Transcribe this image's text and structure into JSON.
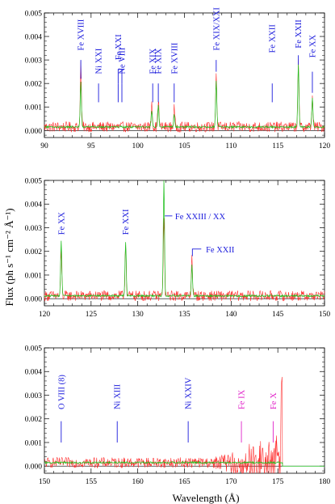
{
  "chart_data": [
    {
      "type": "line",
      "panel": "top",
      "xlim": [
        90,
        120
      ],
      "ylim": [
        -0.0003,
        0.005
      ],
      "xticks": [
        90,
        95,
        100,
        105,
        110,
        115,
        120
      ],
      "xtick_labels": [
        "90",
        "95",
        "100",
        "105",
        "110",
        "115",
        "120"
      ],
      "yticks": [
        0.0,
        0.001,
        0.002,
        0.003,
        0.004,
        0.005
      ],
      "ytick_labels": [
        "0.000",
        "0.001",
        "0.002",
        "0.003",
        "0.004",
        "0.005"
      ],
      "series": [
        {
          "color": "#ff2020",
          "role": "data",
          "baseline": 0.00015,
          "noise": 0.00022,
          "peaks": [
            [
              93.9,
              0.0027
            ],
            [
              101.5,
              0.0011
            ],
            [
              102.2,
              0.0012
            ],
            [
              103.9,
              0.0008
            ],
            [
              108.4,
              0.0023
            ],
            [
              117.2,
              0.0027
            ],
            [
              118.7,
              0.0013
            ]
          ]
        },
        {
          "color": "#22c020",
          "role": "model",
          "baseline": 0.00015,
          "noise": 4e-05,
          "peaks": [
            [
              93.9,
              0.0019
            ],
            [
              101.5,
              0.0007
            ],
            [
              102.2,
              0.0009
            ],
            [
              103.9,
              0.0005
            ],
            [
              108.4,
              0.002
            ],
            [
              117.2,
              0.0027
            ],
            [
              118.7,
              0.0012
            ]
          ]
        }
      ],
      "annotations": [
        {
          "text": "Fe XVIII",
          "x": 93.9,
          "color": "#1a1adc",
          "tick_y": [
            0.0022,
            0.003
          ],
          "label_y": 0.0034
        },
        {
          "text": "Ni XXI",
          "x": 95.8,
          "color": "#1a1adc",
          "tick_y": [
            0.0012,
            0.002
          ],
          "label_y": 0.0024
        },
        {
          "text": "Fe XXI",
          "x": 97.9,
          "color": "#1a1adc",
          "tick_y": [
            0.0012,
            0.002
          ],
          "label_y": 0.003
        },
        {
          "text": "Ne VIII",
          "x": 98.3,
          "color": "#1a1adc",
          "tick_y": [
            0.0012,
            0.002
          ],
          "label_y": 0.0024
        },
        {
          "text": "Fe XIX",
          "x": 101.6,
          "color": "#1a1adc",
          "tick_y": [
            0.0012,
            0.002
          ],
          "label_y": 0.0024
        },
        {
          "text": "Fe XIX",
          "x": 102.2,
          "color": "#1a1adc",
          "tick_y": [
            0.0012,
            0.002
          ],
          "label_y": 0.0024
        },
        {
          "text": "Fe XVIII",
          "x": 103.9,
          "color": "#1a1adc",
          "tick_y": [
            0.0012,
            0.002
          ],
          "label_y": 0.0024
        },
        {
          "text": "Fe XIX/XXI",
          "x": 108.4,
          "color": "#1a1adc",
          "tick_y": [
            0.0025,
            0.003
          ],
          "label_y": 0.0034
        },
        {
          "text": "Fe XXII",
          "x": 114.4,
          "color": "#1a1adc",
          "tick_y": [
            0.0012,
            0.002
          ],
          "label_y": 0.0033
        },
        {
          "text": "Fe XXII",
          "x": 117.2,
          "color": "#1a1adc",
          "tick_y": [
            0.0028,
            0.0032
          ],
          "label_y": 0.0035
        },
        {
          "text": "Fe XX",
          "x": 118.7,
          "color": "#1a1adc",
          "tick_y": [
            0.0016,
            0.0025
          ],
          "label_y": 0.0031
        }
      ],
      "brackets": [
        {
          "x1": 97.9,
          "x2": 98.3,
          "y_top": 0.0026,
          "y_bottom": 0.002,
          "color": "#1a1adc"
        }
      ]
    },
    {
      "type": "line",
      "panel": "middle",
      "xlim": [
        120,
        150
      ],
      "ylim": [
        -0.0003,
        0.005
      ],
      "xticks": [
        120,
        125,
        130,
        135,
        140,
        145,
        150
      ],
      "xtick_labels": [
        "120",
        "125",
        "130",
        "135",
        "140",
        "145",
        "150"
      ],
      "yticks": [
        0.0,
        0.001,
        0.002,
        0.003,
        0.004,
        0.005
      ],
      "ytick_labels": [
        "0.000",
        "0.001",
        "0.002",
        "0.003",
        "0.004",
        "0.005"
      ],
      "series": [
        {
          "color": "#ff2020",
          "role": "data",
          "baseline": 0.00012,
          "noise": 0.00022,
          "peaks": [
            [
              121.8,
              0.0018
            ],
            [
              128.7,
              0.0023
            ],
            [
              132.8,
              0.0034
            ],
            [
              135.8,
              0.0017
            ]
          ]
        },
        {
          "color": "#22c020",
          "role": "model",
          "baseline": 0.00012,
          "noise": 4e-05,
          "peaks": [
            [
              121.8,
              0.0023
            ],
            [
              128.7,
              0.0023
            ],
            [
              132.8,
              0.005
            ],
            [
              135.8,
              0.0013
            ]
          ]
        }
      ],
      "annotations": [
        {
          "text": "Fe XX",
          "x": 121.8,
          "color": "#1a1adc",
          "label_y": 0.0027
        },
        {
          "text": "Fe XXI",
          "x": 128.7,
          "color": "#1a1adc",
          "label_y": 0.0027
        },
        {
          "text": "Fe XXIII / XX",
          "x": 134.0,
          "color": "#1a1adc",
          "label_y": 0.0035,
          "horizontal": true,
          "leader": [
            [
              132.9,
              0.0035
            ],
            [
              133.7,
              0.0035
            ]
          ]
        },
        {
          "text": "Fe XXII",
          "x": 137.3,
          "color": "#1a1adc",
          "label_y": 0.0021,
          "horizontal": true,
          "leader": [
            [
              135.85,
              0.0018
            ],
            [
              135.85,
              0.0021
            ],
            [
              136.8,
              0.0021
            ]
          ]
        }
      ]
    },
    {
      "type": "line",
      "panel": "bottom",
      "xlim": [
        150,
        180
      ],
      "ylim": [
        -0.0003,
        0.005
      ],
      "xticks": [
        150,
        155,
        160,
        165,
        170,
        175,
        180
      ],
      "xtick_labels": [
        "150",
        "155",
        "160",
        "165",
        "170",
        "175",
        "180"
      ],
      "yticks": [
        0.0,
        0.001,
        0.002,
        0.003,
        0.004,
        0.005
      ],
      "ytick_labels": [
        "0.000",
        "0.001",
        "0.002",
        "0.003",
        "0.004",
        "0.005"
      ],
      "series": [
        {
          "color": "#ff2020",
          "role": "data",
          "baseline": 0.00015,
          "noise": 0.00022,
          "noise_growth": [
            168,
            175.5,
            0.0013
          ],
          "cutoff": 175.5,
          "peaks": [
            [
              175.4,
              0.0031
            ]
          ]
        },
        {
          "color": "#22c020",
          "role": "model",
          "baseline": 0.00015,
          "noise": 4e-05,
          "cutoff": 175.5,
          "peaks": []
        }
      ],
      "annotations": [
        {
          "text": "O VIII (8)",
          "x": 151.8,
          "color": "#1a1adc",
          "tick_y": [
            0.001,
            0.0019
          ],
          "label_y": 0.0024
        },
        {
          "text": "Ni XIII",
          "x": 157.8,
          "color": "#1a1adc",
          "tick_y": [
            0.001,
            0.0019
          ],
          "label_y": 0.0024
        },
        {
          "text": "Ni XXIV",
          "x": 165.4,
          "color": "#1a1adc",
          "tick_y": [
            0.001,
            0.0019
          ],
          "label_y": 0.0024
        },
        {
          "text": "Fe IX",
          "x": 171.1,
          "color": "#e020c8",
          "tick_y": [
            0.001,
            0.0019
          ],
          "label_y": 0.0024
        },
        {
          "text": "Fe X",
          "x": 174.5,
          "color": "#e020c8",
          "tick_y": [
            0.001,
            0.0019
          ],
          "label_y": 0.0024
        }
      ]
    }
  ],
  "ylabel": "Flux  (ph s⁻¹ cm⁻² Å⁻¹)",
  "xlabel": "Wavelength (Å)"
}
